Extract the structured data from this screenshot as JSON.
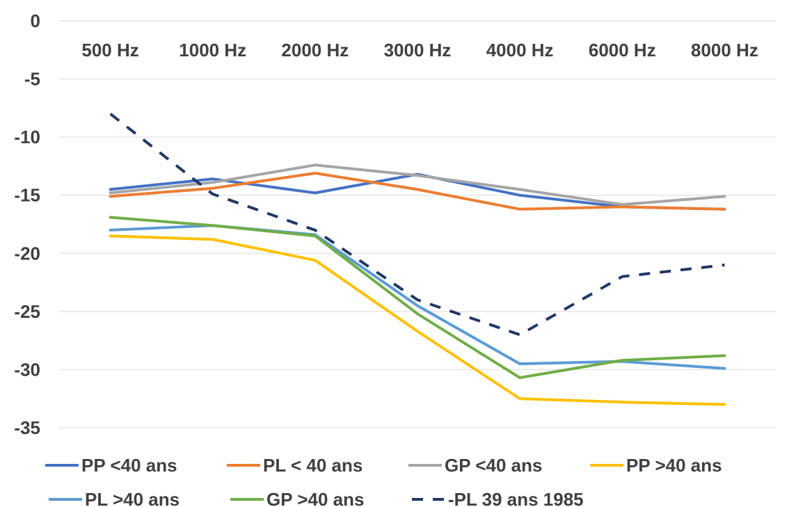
{
  "chart_data": {
    "type": "line",
    "categories": [
      "500 Hz",
      "1000 Hz",
      "2000 Hz",
      "3000 Hz",
      "4000 Hz",
      "6000 Hz",
      "8000 Hz"
    ],
    "y_ticks": [
      "0",
      "-5",
      "-10",
      "-15",
      "-20",
      "-25",
      "-30",
      "-35"
    ],
    "ylim": [
      -35,
      0
    ],
    "grid": true,
    "x_axis_position": "top",
    "legend_position": "bottom",
    "series": [
      {
        "name": "PP <40 ans",
        "color": "#4472C4",
        "dash": false,
        "values": [
          -14.5,
          -13.6,
          -14.8,
          -13.2,
          -15.0,
          -16.0,
          -16.2
        ]
      },
      {
        "name": "PL < 40 ans",
        "color": "#ED7D31",
        "dash": false,
        "values": [
          -15.1,
          -14.4,
          -13.1,
          -14.5,
          -16.2,
          -16.0,
          -16.2
        ]
      },
      {
        "name": "GP <40 ans",
        "color": "#A5A5A5",
        "dash": false,
        "values": [
          -14.8,
          -13.9,
          -12.4,
          -13.3,
          -14.5,
          -15.8,
          -15.1
        ]
      },
      {
        "name": "PP >40 ans",
        "color": "#FFC000",
        "dash": false,
        "values": [
          -18.5,
          -18.8,
          -20.6,
          -26.7,
          -32.5,
          -32.8,
          -33.0
        ]
      },
      {
        "name": "PL >40 ans",
        "color": "#5B9BD5",
        "dash": false,
        "values": [
          -18.0,
          -17.6,
          -18.4,
          -24.5,
          -29.5,
          -29.3,
          -29.9
        ]
      },
      {
        "name": "GP >40 ans",
        "color": "#70AD47",
        "dash": false,
        "values": [
          -16.9,
          -17.6,
          -18.5,
          -25.2,
          -30.7,
          -29.2,
          -28.8
        ]
      },
      {
        "name": "-PL  39 ans 1985",
        "color": "#203864",
        "dash": true,
        "values": [
          -8.0,
          -14.9,
          -18.0,
          -24.0,
          -27.0,
          -22.0,
          -21.0
        ]
      }
    ]
  }
}
